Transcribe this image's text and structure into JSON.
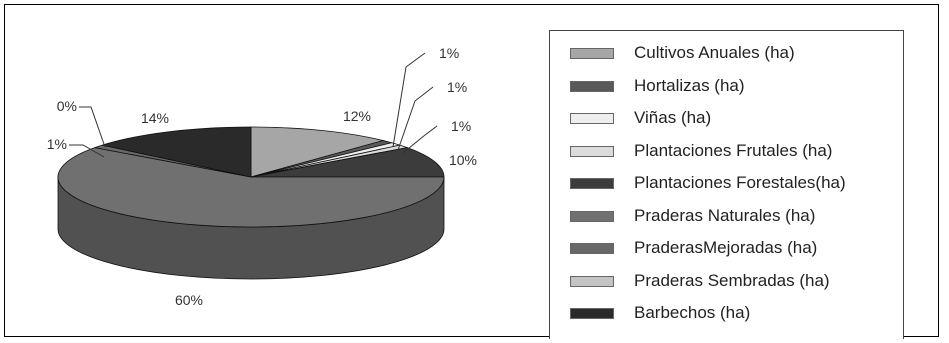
{
  "chart_data": {
    "type": "pie",
    "title": "",
    "categories": [
      "Cultivos Anuales (ha)",
      "Hortalizas (ha)",
      "Viñas (ha)",
      "Plantaciones Frutales (ha)",
      "Plantaciones Forestales(ha)",
      "Praderas Naturales (ha)",
      "PraderasMejoradas (ha)",
      "Praderas Sembradas (ha)",
      "Barbechos (ha)"
    ],
    "values": [
      12,
      1,
      1,
      1,
      10,
      60,
      1,
      0,
      14
    ],
    "value_labels": [
      "12%",
      "1%",
      "1%",
      "1%",
      "10%",
      "60%",
      "1%",
      "0%",
      "14%"
    ],
    "colors": [
      "#a6a6a6",
      "#595959",
      "#eeeeee",
      "#dcdcdc",
      "#3c3c3c",
      "#707070",
      "#686868",
      "#c4c4c4",
      "#2a2a2a"
    ],
    "legend_position": "right",
    "style": "3d"
  }
}
